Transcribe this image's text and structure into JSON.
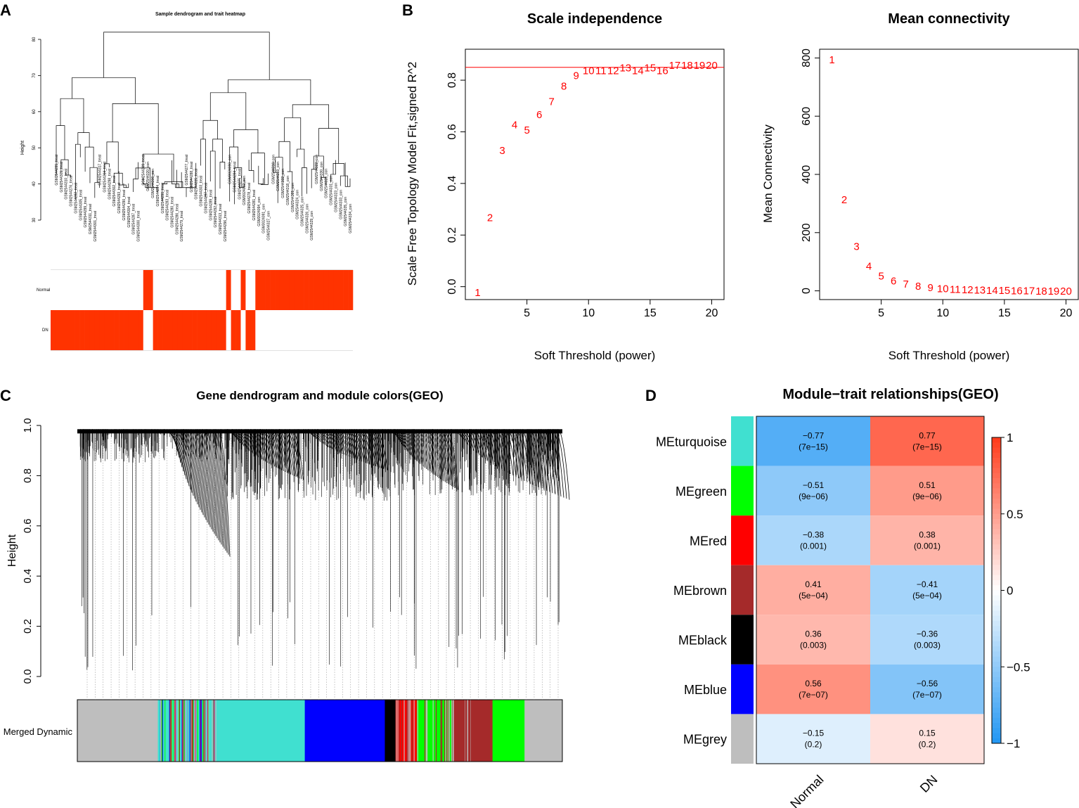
{
  "figure": {
    "panel_labels": [
      "A",
      "B",
      "C",
      "D"
    ]
  },
  "colors": {
    "red": "#ff0000",
    "trait_red": "#ff3300",
    "turquoise": "#40e0d0",
    "green": "#00ff00",
    "brown": "#a52a2a",
    "black": "#000000",
    "blue": "#0000ff",
    "grey": "#bebebe",
    "heat_neg": "#2196f3",
    "heat_pos": "#ff3a1a"
  },
  "chart_data": [
    {
      "id": "A",
      "type": "dendrogram",
      "title": "Sample dendrogram and trait heatmap",
      "ylabel": "Height",
      "yticks": [
        "30",
        "40",
        "50",
        "60",
        "70",
        "80"
      ],
      "ylim": [
        30,
        85
      ],
      "samples": [
        "GSM2544295_treat",
        "GSM2544305_treat",
        "GSM2544310_treat",
        "GSM2544276_treat",
        "GSM2544282_treat",
        "GSM2544305_treat",
        "GSM2544299_treat",
        "GSM2544311_treat",
        "GSM2544301_treat",
        "GSM2544317_treat",
        "GSM2544314_treat",
        "GSM2544298_treat",
        "GSM2544302_treat",
        "GSM2544293_treat",
        "GSM2544290_treat",
        "GSM2544304_treat",
        "GSM2544287_treat",
        "GSM2544300_treat",
        "GSM2544309_treat",
        "GSM2544320_con",
        "GSM2544306_con",
        "GSM2544294_treat",
        "GSM2544291_treat",
        "GSM2544283_treat",
        "GSM2544280_treat",
        "GSM2544286_treat",
        "GSM2544279_treat",
        "GSM2544277_treat",
        "GSM2544288_treat",
        "GSM2544315_treat",
        "GSM2544303_treat",
        "GSM2544297_treat",
        "GSM2544289_treat",
        "GSM2544292_treat",
        "GSM2544313_treat",
        "GSM2544296_treat",
        "GSM3024090_con",
        "GSM2544284_treat",
        "GSM2544275_treat",
        "GSM3024092_con",
        "GSM2544278_treat",
        "GSM2544281_treat",
        "GSM3024094_con",
        "GSM3024091_con",
        "GSM2544327_con",
        "GSM2544316_con",
        "GSM2544319_con",
        "GSM2544332_con",
        "GSM2544318_con",
        "GSM2544321_con",
        "GSM2544324_con",
        "GSM2544325_con",
        "GSM2544326_con",
        "GSM2544329_con",
        "GSM2544322_con",
        "GSM2544330_con",
        "GSM2544328_con",
        "GSM2544331_con",
        "GSM2544323_con",
        "GSM2544333_con",
        "GSM2544335_con",
        "GSM2544334_con"
      ],
      "trait_rows": [
        "Normal",
        "DN"
      ],
      "normal_indicator": [
        0,
        0,
        0,
        0,
        0,
        0,
        0,
        0,
        0,
        0,
        0,
        0,
        0,
        0,
        0,
        0,
        0,
        0,
        0,
        1,
        1,
        0,
        0,
        0,
        0,
        0,
        0,
        0,
        0,
        0,
        0,
        0,
        0,
        0,
        0,
        0,
        1,
        0,
        0,
        1,
        0,
        0,
        1,
        1,
        1,
        1,
        1,
        1,
        1,
        1,
        1,
        1,
        1,
        1,
        1,
        1,
        1,
        1,
        1,
        1,
        1,
        1
      ]
    },
    {
      "id": "B1",
      "type": "scatter",
      "title": "Scale independence",
      "xlabel": "Soft Threshold (power)",
      "ylabel": "Scale Free Topology Model Fit,signed R^2",
      "xlim": [
        0,
        21
      ],
      "ylim": [
        -0.05,
        0.92
      ],
      "xticks": [
        5,
        10,
        15,
        20
      ],
      "yticks": [
        0.0,
        0.2,
        0.4,
        0.6,
        0.8
      ],
      "ytick_labels": [
        "0.0",
        "0.2",
        "0.4",
        "0.6",
        "0.8"
      ],
      "threshold_line": 0.85,
      "x": [
        1,
        2,
        3,
        4,
        5,
        6,
        7,
        8,
        9,
        10,
        11,
        12,
        13,
        14,
        15,
        16,
        17,
        18,
        19,
        20
      ],
      "y": [
        -0.02,
        0.27,
        0.53,
        0.63,
        0.61,
        0.67,
        0.72,
        0.78,
        0.82,
        0.84,
        0.84,
        0.84,
        0.85,
        0.84,
        0.85,
        0.84,
        0.86,
        0.86,
        0.86,
        0.86
      ],
      "labels": [
        "1",
        "2",
        "3",
        "4",
        "5",
        "6",
        "7",
        "8",
        "9",
        "10",
        "11",
        "12",
        "13",
        "14",
        "15",
        "16",
        "17",
        "18",
        "19",
        "20"
      ]
    },
    {
      "id": "B2",
      "type": "scatter",
      "title": "Mean connectivity",
      "xlabel": "Soft Threshold (power)",
      "ylabel": "Mean Connectivity",
      "xlim": [
        0,
        21
      ],
      "ylim": [
        -30,
        830
      ],
      "xticks": [
        5,
        10,
        15,
        20
      ],
      "yticks": [
        0,
        200,
        400,
        600,
        800
      ],
      "ytick_labels": [
        "0",
        "200",
        "400",
        "600",
        "800"
      ],
      "x": [
        1,
        2,
        3,
        4,
        5,
        6,
        7,
        8,
        9,
        10,
        11,
        12,
        13,
        14,
        15,
        16,
        17,
        18,
        19,
        20
      ],
      "y": [
        796,
        315,
        155,
        87,
        53,
        36,
        25,
        18,
        14,
        10,
        8,
        6,
        5,
        4,
        4,
        3,
        3,
        2,
        2,
        2
      ],
      "labels": [
        "1",
        "2",
        "3",
        "4",
        "5",
        "6",
        "7",
        "8",
        "9",
        "10",
        "11",
        "12",
        "13",
        "14",
        "15",
        "16",
        "17",
        "18",
        "19",
        "20"
      ]
    },
    {
      "id": "C",
      "type": "dendrogram",
      "title": "Gene dendrogram and module colors(GEO)",
      "ylabel": "Height",
      "ylim": [
        0,
        1.0
      ],
      "yticks": [
        "0.0",
        "0.2",
        "0.4",
        "0.6",
        "0.8",
        "1.0"
      ],
      "color_row_label": "Merged Dynamic",
      "module_order": [
        "grey",
        "turquoise",
        "blue",
        "black",
        "red",
        "green",
        "brown",
        "green",
        "grey"
      ]
    },
    {
      "id": "D",
      "type": "heatmap",
      "title": "Module−trait relationships(GEO)",
      "columns": [
        "Normal",
        "DN"
      ],
      "rows": [
        "MEturquoise",
        "MEgreen",
        "MEred",
        "MEbrown",
        "MEblack",
        "MEblue",
        "MEgrey"
      ],
      "row_colors": [
        "turquoise",
        "green",
        "red",
        "brown",
        "black",
        "blue",
        "grey"
      ],
      "values": [
        [
          -0.77,
          0.77
        ],
        [
          -0.51,
          0.51
        ],
        [
          -0.38,
          0.38
        ],
        [
          0.41,
          -0.41
        ],
        [
          0.36,
          -0.36
        ],
        [
          0.56,
          -0.56
        ],
        [
          -0.15,
          0.15
        ]
      ],
      "value_labels": [
        [
          "−0.77",
          "0.77"
        ],
        [
          "−0.51",
          "0.51"
        ],
        [
          "−0.38",
          "0.38"
        ],
        [
          "0.41",
          "−0.41"
        ],
        [
          "0.36",
          "−0.36"
        ],
        [
          "0.56",
          "−0.56"
        ],
        [
          "−0.15",
          "0.15"
        ]
      ],
      "pvalues": [
        [
          "(7e−15)",
          "(7e−15)"
        ],
        [
          "(9e−06)",
          "(9e−06)"
        ],
        [
          "(0.001)",
          "(0.001)"
        ],
        [
          "(5e−04)",
          "(5e−04)"
        ],
        [
          "(0.003)",
          "(0.003)"
        ],
        [
          "(7e−07)",
          "(7e−07)"
        ],
        [
          "(0.2)",
          "(0.2)"
        ]
      ],
      "legend_ticks": [
        1,
        0.5,
        0,
        -0.5,
        -1
      ],
      "legend_tick_labels": [
        "1",
        "0.5",
        "0",
        "−0.5",
        "−1"
      ],
      "legend_range": [
        -1,
        1
      ]
    }
  ]
}
